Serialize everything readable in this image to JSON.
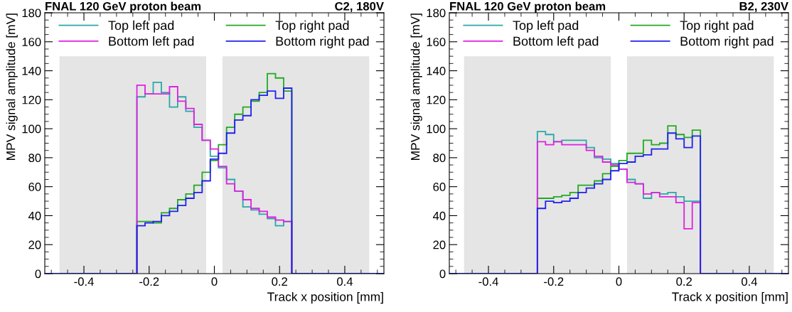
{
  "chart_data": [
    {
      "type": "histogram",
      "title": "FNAL 120 GeV proton beam",
      "subtitle": "C2, 180V",
      "xlabel": "Track x position [mm]",
      "ylabel": "MPV signal amplitude [mV]",
      "bins": [
        -0.5375,
        -0.5125,
        -0.4875,
        -0.4625,
        -0.4375,
        -0.4125,
        -0.3875,
        -0.3625,
        -0.3375,
        -0.3125,
        -0.2875,
        -0.2625,
        -0.2375,
        -0.2125,
        -0.1875,
        -0.1625,
        -0.1375,
        -0.1125,
        -0.0875,
        -0.0625,
        -0.0375,
        -0.0125,
        0.0125,
        0.0375,
        0.0625,
        0.0875,
        0.1125,
        0.1375,
        0.1625,
        0.1875,
        0.2125,
        0.2375,
        0.2625,
        0.2875,
        0.3125,
        0.3375,
        0.3625,
        0.3875,
        0.4125,
        0.4375,
        0.4625,
        0.4875,
        0.5125,
        0.5375
      ],
      "series": [
        {
          "type": "area",
          "color": "#e5e5e5",
          "x": [
            -0.475,
            -0.025
          ],
          "values": [
            150,
            150
          ]
        },
        {
          "type": "area",
          "color": "#e5e5e5",
          "x": [
            0.025,
            0.475
          ],
          "values": [
            150,
            150
          ]
        },
        {
          "name": "Top left pad",
          "color": "#2aa8a8",
          "values": [
            0,
            0,
            0,
            0,
            0,
            0,
            0,
            0,
            0,
            0,
            0,
            0,
            122,
            124,
            132,
            125,
            115,
            122,
            112,
            101,
            92,
            81,
            73,
            65,
            57,
            46,
            44,
            41,
            38,
            33,
            36,
            0,
            0,
            0,
            0,
            0,
            0,
            0,
            0,
            0,
            0,
            0,
            0
          ]
        },
        {
          "name": "Top right pad",
          "color": "#22aa22",
          "values": [
            0,
            0,
            0,
            0,
            0,
            0,
            0,
            0,
            0,
            0,
            0,
            0,
            36,
            36,
            35,
            42,
            45,
            51,
            55,
            61,
            70,
            78,
            89,
            101,
            110,
            115,
            119,
            125,
            138,
            135,
            126,
            0,
            0,
            0,
            0,
            0,
            0,
            0,
            0,
            0,
            0,
            0,
            0
          ]
        },
        {
          "name": "Bottom left pad",
          "color": "#e020e0",
          "values": [
            0,
            0,
            0,
            0,
            0,
            0,
            0,
            0,
            0,
            0,
            0,
            0,
            130,
            124,
            124,
            124,
            129,
            119,
            114,
            103,
            92,
            86,
            74,
            62,
            57,
            51,
            45,
            43,
            39,
            37,
            36,
            0,
            0,
            0,
            0,
            0,
            0,
            0,
            0,
            0,
            0,
            0,
            0
          ]
        },
        {
          "name": "Bottom right pad",
          "color": "#2020f0",
          "values": [
            0,
            0,
            0,
            0,
            0,
            0,
            0,
            0,
            0,
            0,
            0,
            0,
            33,
            35,
            36,
            40,
            43,
            47,
            52,
            56,
            64,
            79,
            83,
            97,
            106,
            109,
            120,
            123,
            126,
            121,
            128,
            0,
            0,
            0,
            0,
            0,
            0,
            0,
            0,
            0,
            0,
            0,
            0
          ]
        }
      ],
      "xlim": [
        -0.52,
        0.52
      ],
      "xticks": [
        -0.4,
        -0.2,
        0,
        0.2,
        0.4
      ],
      "ylim": [
        0,
        180
      ],
      "yticks": [
        0,
        20,
        40,
        60,
        80,
        100,
        120,
        140,
        160,
        180
      ],
      "legend": "top",
      "grid": false
    },
    {
      "type": "histogram",
      "title": "FNAL 120 GeV proton beam",
      "subtitle": "B2, 230V",
      "xlabel": "Track x position [mm]",
      "ylabel": "MPV signal amplitude [mV]",
      "bins": [
        -0.525,
        -0.5,
        -0.475,
        -0.45,
        -0.425,
        -0.4,
        -0.375,
        -0.35,
        -0.325,
        -0.3,
        -0.275,
        -0.25,
        -0.225,
        -0.2,
        -0.175,
        -0.15,
        -0.125,
        -0.1,
        -0.075,
        -0.05,
        -0.025,
        0,
        0.025,
        0.05,
        0.075,
        0.1,
        0.125,
        0.15,
        0.175,
        0.2,
        0.225,
        0.25,
        0.275,
        0.3,
        0.325,
        0.35,
        0.375,
        0.4,
        0.425,
        0.45,
        0.475,
        0.5,
        0.525
      ],
      "series": [
        {
          "type": "area",
          "color": "#e5e5e5",
          "x": [
            -0.475,
            -0.025
          ],
          "values": [
            150,
            150
          ]
        },
        {
          "type": "area",
          "color": "#e5e5e5",
          "x": [
            0.025,
            0.475
          ],
          "values": [
            150,
            150
          ]
        },
        {
          "name": "Top left pad",
          "color": "#2aa8a8",
          "values": [
            0,
            0,
            0,
            0,
            0,
            0,
            0,
            0,
            0,
            0,
            0,
            98,
            96,
            91,
            92,
            92,
            92,
            87,
            80,
            79,
            76,
            72,
            65,
            62,
            52,
            56,
            55,
            56,
            53,
            50,
            50,
            0,
            0,
            0,
            0,
            0,
            0,
            0,
            0,
            0,
            0,
            0
          ]
        },
        {
          "name": "Top right pad",
          "color": "#22aa22",
          "values": [
            0,
            0,
            0,
            0,
            0,
            0,
            0,
            0,
            0,
            0,
            0,
            52,
            52,
            53,
            54,
            56,
            61,
            61,
            64,
            69,
            74,
            78,
            83,
            83,
            92,
            89,
            90,
            102,
            96,
            94,
            99,
            0,
            0,
            0,
            0,
            0,
            0,
            0,
            0,
            0,
            0,
            0
          ]
        },
        {
          "name": "Bottom left pad",
          "color": "#e020e0",
          "values": [
            0,
            0,
            0,
            0,
            0,
            0,
            0,
            0,
            0,
            0,
            0,
            91,
            89,
            91,
            89,
            89,
            89,
            85,
            81,
            77,
            75,
            72,
            63,
            62,
            55,
            56,
            53,
            53,
            49,
            31,
            49,
            0,
            0,
            0,
            0,
            0,
            0,
            0,
            0,
            0,
            0,
            0
          ]
        },
        {
          "name": "Bottom right pad",
          "color": "#2020f0",
          "values": [
            0,
            0,
            0,
            0,
            0,
            0,
            0,
            0,
            0,
            0,
            0,
            45,
            50,
            49,
            50,
            52,
            56,
            59,
            62,
            65,
            71,
            76,
            77,
            81,
            82,
            86,
            86,
            97,
            93,
            87,
            95,
            0,
            0,
            0,
            0,
            0,
            0,
            0,
            0,
            0,
            0,
            0
          ]
        }
      ],
      "xlim": [
        -0.52,
        0.52
      ],
      "xticks": [
        -0.4,
        -0.2,
        0,
        0.2,
        0.4
      ],
      "ylim": [
        0,
        180
      ],
      "yticks": [
        0,
        20,
        40,
        60,
        80,
        100,
        120,
        140,
        160,
        180
      ],
      "legend": "top",
      "grid": false
    }
  ]
}
